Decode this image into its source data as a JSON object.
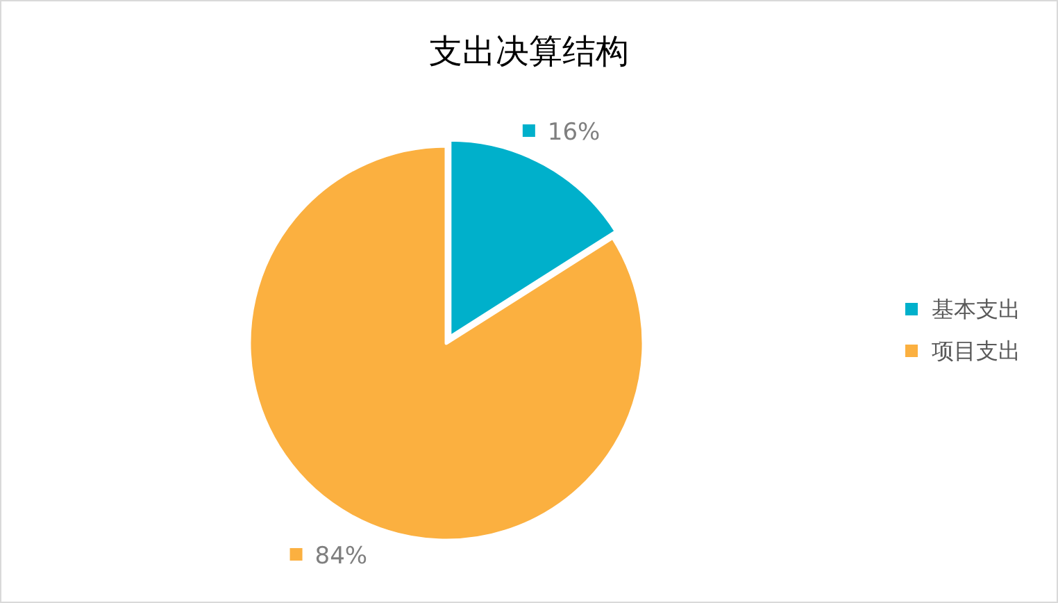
{
  "chart_data": {
    "type": "pie",
    "title": "支出决算结构",
    "categories": [
      "基本支出",
      "项目支出"
    ],
    "values": [
      16,
      84
    ],
    "value_labels": [
      "16%",
      "84%"
    ],
    "colors": [
      "#00b0cb",
      "#fbb040"
    ],
    "legend": "right"
  }
}
